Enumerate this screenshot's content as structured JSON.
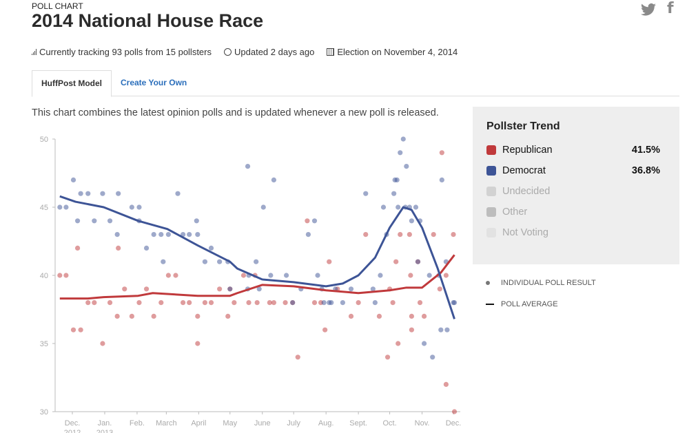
{
  "header": {
    "kicker": "POLL CHART",
    "title": "2014 National House Race"
  },
  "social": {
    "twitter": "twitter-icon",
    "facebook": "facebook-icon"
  },
  "meta": {
    "tracking": "Currently tracking 93 polls from 15 pollsters",
    "updated": "Updated 2 days ago",
    "election": "Election on November 4, 2014"
  },
  "tabs": [
    {
      "label": "HuffPost Model",
      "active": true
    },
    {
      "label": "Create Your Own",
      "active": false
    }
  ],
  "description": "This chart combines the latest opinion polls and is updated whenever a new poll is released.",
  "legend": {
    "title": "Pollster Trend",
    "items": [
      {
        "label": "Republican",
        "value": "41.5%",
        "color": "#c0393b"
      },
      {
        "label": "Democrat",
        "value": "36.8%",
        "color": "#3d5496"
      },
      {
        "label": "Undecided",
        "value": "",
        "color": "#d2d2d2"
      },
      {
        "label": "Other",
        "value": "",
        "color": "#bdbdbd"
      },
      {
        "label": "Not Voting",
        "value": "",
        "color": "#e2e2e2"
      }
    ],
    "key_points": "INDIVIDUAL POLL RESULT",
    "key_line": "POLL AVERAGE"
  },
  "chart_data": {
    "type": "scatter",
    "ylim": [
      30,
      50
    ],
    "yticks": [
      30,
      35,
      40,
      45,
      50
    ],
    "xlim": [
      "2012-11-15",
      "2013-12-05"
    ],
    "xticks": [
      {
        "date": "2012-12-01",
        "label": "Dec.",
        "sub": "2012"
      },
      {
        "date": "2013-01-01",
        "label": "Jan.",
        "sub": "2013"
      },
      {
        "date": "2013-02-01",
        "label": "Feb.",
        "sub": ""
      },
      {
        "date": "2013-03-01",
        "label": "March",
        "sub": ""
      },
      {
        "date": "2013-04-01",
        "label": "April",
        "sub": ""
      },
      {
        "date": "2013-05-01",
        "label": "May",
        "sub": ""
      },
      {
        "date": "2013-06-01",
        "label": "June",
        "sub": ""
      },
      {
        "date": "2013-07-01",
        "label": "July",
        "sub": ""
      },
      {
        "date": "2013-08-01",
        "label": "Aug.",
        "sub": ""
      },
      {
        "date": "2013-09-01",
        "label": "Sept.",
        "sub": ""
      },
      {
        "date": "2013-10-01",
        "label": "Oct.",
        "sub": ""
      },
      {
        "date": "2013-11-01",
        "label": "Nov.",
        "sub": ""
      },
      {
        "date": "2013-12-01",
        "label": "Dec.",
        "sub": ""
      }
    ],
    "grid": false,
    "series": [
      {
        "name": "Republican",
        "color": "#c0393b",
        "trend": [
          [
            "2012-11-19",
            38.3
          ],
          [
            "2012-12-16",
            38.3
          ],
          [
            "2012-12-31",
            38.4
          ],
          [
            "2013-02-02",
            38.5
          ],
          [
            "2013-02-16",
            38.7
          ],
          [
            "2013-03-31",
            38.5
          ],
          [
            "2013-05-01",
            38.5
          ],
          [
            "2013-05-08",
            38.7
          ],
          [
            "2013-06-01",
            39.3
          ],
          [
            "2013-07-01",
            39.2
          ],
          [
            "2013-08-01",
            38.9
          ],
          [
            "2013-09-01",
            38.7
          ],
          [
            "2013-10-01",
            38.9
          ],
          [
            "2013-10-17",
            39.1
          ],
          [
            "2013-11-01",
            39.1
          ],
          [
            "2013-11-19",
            40.2
          ],
          [
            "2013-12-02",
            41.5
          ]
        ],
        "points": [
          [
            "2012-11-19",
            40
          ],
          [
            "2012-11-25",
            40
          ],
          [
            "2012-12-02",
            36
          ],
          [
            "2012-12-06",
            42
          ],
          [
            "2012-12-09",
            36
          ],
          [
            "2012-12-16",
            38
          ],
          [
            "2012-12-22",
            38
          ],
          [
            "2012-12-30",
            35
          ],
          [
            "2013-01-06",
            38
          ],
          [
            "2013-01-13",
            37
          ],
          [
            "2013-01-14",
            42
          ],
          [
            "2013-01-20",
            39
          ],
          [
            "2013-01-27",
            37
          ],
          [
            "2013-02-03",
            38
          ],
          [
            "2013-02-10",
            39
          ],
          [
            "2013-02-17",
            37
          ],
          [
            "2013-02-24",
            38
          ],
          [
            "2013-03-03",
            40
          ],
          [
            "2013-03-10",
            40
          ],
          [
            "2013-03-17",
            38
          ],
          [
            "2013-03-23",
            38
          ],
          [
            "2013-03-31",
            37
          ],
          [
            "2013-03-31",
            35
          ],
          [
            "2013-04-07",
            38
          ],
          [
            "2013-04-13",
            38
          ],
          [
            "2013-04-21",
            39
          ],
          [
            "2013-04-29",
            37
          ],
          [
            "2013-05-01",
            39
          ],
          [
            "2013-05-05",
            38
          ],
          [
            "2013-05-14",
            40
          ],
          [
            "2013-05-19",
            38
          ],
          [
            "2013-05-25",
            40
          ],
          [
            "2013-05-27",
            38
          ],
          [
            "2013-06-08",
            38
          ],
          [
            "2013-06-12",
            38
          ],
          [
            "2013-06-23",
            38
          ],
          [
            "2013-06-30",
            38
          ],
          [
            "2013-07-05",
            34
          ],
          [
            "2013-07-14",
            44
          ],
          [
            "2013-07-21",
            38
          ],
          [
            "2013-07-27",
            38
          ],
          [
            "2013-07-31",
            36
          ],
          [
            "2013-08-04",
            41
          ],
          [
            "2013-08-12",
            39
          ],
          [
            "2013-08-25",
            37
          ],
          [
            "2013-09-01",
            38
          ],
          [
            "2013-09-08",
            43
          ],
          [
            "2013-09-21",
            37
          ],
          [
            "2013-09-29",
            34
          ],
          [
            "2013-10-01",
            39
          ],
          [
            "2013-10-04",
            38
          ],
          [
            "2013-10-07",
            41
          ],
          [
            "2013-10-09",
            35
          ],
          [
            "2013-10-11",
            43
          ],
          [
            "2013-10-20",
            43
          ],
          [
            "2013-10-21",
            40
          ],
          [
            "2013-10-22",
            37
          ],
          [
            "2013-10-22",
            36
          ],
          [
            "2013-10-28",
            41
          ],
          [
            "2013-10-30",
            38
          ],
          [
            "2013-11-03",
            37
          ],
          [
            "2013-11-12",
            43
          ],
          [
            "2013-11-18",
            39
          ],
          [
            "2013-11-20",
            49
          ],
          [
            "2013-11-24",
            40
          ],
          [
            "2013-11-24",
            32
          ],
          [
            "2013-12-01",
            43
          ],
          [
            "2013-12-02",
            30
          ]
        ]
      },
      {
        "name": "Democrat",
        "color": "#3d5496",
        "trend": [
          [
            "2012-11-19",
            45.8
          ],
          [
            "2012-12-04",
            45.4
          ],
          [
            "2012-12-31",
            45.0
          ],
          [
            "2013-02-02",
            44.0
          ],
          [
            "2013-03-02",
            43.4
          ],
          [
            "2013-03-31",
            42.2
          ],
          [
            "2013-05-01",
            41.0
          ],
          [
            "2013-05-08",
            40.5
          ],
          [
            "2013-06-01",
            39.7
          ],
          [
            "2013-07-01",
            39.5
          ],
          [
            "2013-08-01",
            39.2
          ],
          [
            "2013-08-17",
            39.4
          ],
          [
            "2013-09-01",
            40.0
          ],
          [
            "2013-09-17",
            41.3
          ],
          [
            "2013-10-01",
            43.5
          ],
          [
            "2013-10-14",
            45.0
          ],
          [
            "2013-10-22",
            44.8
          ],
          [
            "2013-11-01",
            43.5
          ],
          [
            "2013-11-16",
            40.5
          ],
          [
            "2013-12-02",
            36.8
          ]
        ],
        "points": [
          [
            "2012-11-19",
            45
          ],
          [
            "2012-11-25",
            45
          ],
          [
            "2012-12-02",
            47
          ],
          [
            "2012-12-06",
            44
          ],
          [
            "2012-12-09",
            46
          ],
          [
            "2012-12-16",
            46
          ],
          [
            "2012-12-22",
            44
          ],
          [
            "2012-12-30",
            46
          ],
          [
            "2013-01-06",
            44
          ],
          [
            "2013-01-13",
            43
          ],
          [
            "2013-01-14",
            46
          ],
          [
            "2013-01-27",
            45
          ],
          [
            "2013-02-03",
            45
          ],
          [
            "2013-02-03",
            44
          ],
          [
            "2013-02-10",
            42
          ],
          [
            "2013-02-17",
            43
          ],
          [
            "2013-02-24",
            43
          ],
          [
            "2013-02-26",
            41
          ],
          [
            "2013-03-03",
            43
          ],
          [
            "2013-03-12",
            46
          ],
          [
            "2013-03-17",
            43
          ],
          [
            "2013-03-23",
            43
          ],
          [
            "2013-03-30",
            44
          ],
          [
            "2013-03-31",
            43
          ],
          [
            "2013-04-07",
            41
          ],
          [
            "2013-04-13",
            42
          ],
          [
            "2013-04-21",
            41
          ],
          [
            "2013-04-29",
            41
          ],
          [
            "2013-05-01",
            39
          ],
          [
            "2013-05-18",
            48
          ],
          [
            "2013-05-18",
            39
          ],
          [
            "2013-05-19",
            40
          ],
          [
            "2013-05-26",
            41
          ],
          [
            "2013-05-29",
            39
          ],
          [
            "2013-06-02",
            45
          ],
          [
            "2013-06-09",
            40
          ],
          [
            "2013-06-12",
            47
          ],
          [
            "2013-06-24",
            40
          ],
          [
            "2013-06-30",
            38
          ],
          [
            "2013-07-08",
            39
          ],
          [
            "2013-07-15",
            43
          ],
          [
            "2013-07-21",
            44
          ],
          [
            "2013-07-24",
            40
          ],
          [
            "2013-07-28",
            39
          ],
          [
            "2013-07-30",
            38
          ],
          [
            "2013-08-04",
            38
          ],
          [
            "2013-08-06",
            38
          ],
          [
            "2013-08-10",
            39
          ],
          [
            "2013-08-17",
            38
          ],
          [
            "2013-08-25",
            39
          ],
          [
            "2013-09-08",
            46
          ],
          [
            "2013-09-15",
            39
          ],
          [
            "2013-09-17",
            38
          ],
          [
            "2013-09-22",
            40
          ],
          [
            "2013-09-25",
            45
          ],
          [
            "2013-09-28",
            43
          ],
          [
            "2013-10-05",
            46
          ],
          [
            "2013-10-06",
            47
          ],
          [
            "2013-10-08",
            47
          ],
          [
            "2013-10-09",
            45
          ],
          [
            "2013-10-11",
            49
          ],
          [
            "2013-10-14",
            50
          ],
          [
            "2013-10-16",
            45
          ],
          [
            "2013-10-17",
            48
          ],
          [
            "2013-10-20",
            45
          ],
          [
            "2013-10-22",
            44
          ],
          [
            "2013-10-26",
            45
          ],
          [
            "2013-10-28",
            41
          ],
          [
            "2013-10-30",
            44
          ],
          [
            "2013-11-03",
            35
          ],
          [
            "2013-11-08",
            40
          ],
          [
            "2013-11-11",
            34
          ],
          [
            "2013-11-17",
            40
          ],
          [
            "2013-11-19",
            36
          ],
          [
            "2013-11-20",
            47
          ],
          [
            "2013-11-25",
            36
          ],
          [
            "2013-11-24",
            41
          ],
          [
            "2013-12-01",
            38
          ],
          [
            "2013-12-02",
            38
          ]
        ]
      }
    ]
  }
}
